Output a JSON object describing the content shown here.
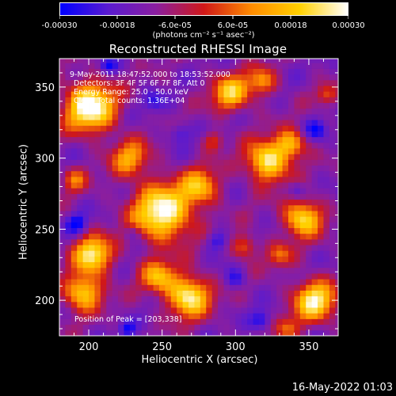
{
  "colorbar": {
    "tick_labels": [
      "-0.00030",
      "-0.00018",
      "-6.0e-05",
      "6.0e-05",
      "0.00018",
      "0.00030"
    ],
    "units": "(photons cm⁻² s⁻¹ asec⁻²)",
    "range": [
      -0.0003,
      0.0003
    ],
    "colormap": [
      "#0000ff",
      "#5a1bd0",
      "#8a1ea0",
      "#d01818",
      "#ff8c00",
      "#ffd000",
      "#ffffff"
    ]
  },
  "chart_data": {
    "type": "heatmap",
    "title": "Reconstructed RHESSI Image",
    "xlabel": "Heliocentric X (arcsec)",
    "ylabel": "Heliocentric Y (arcsec)",
    "xlim": [
      180,
      370
    ],
    "ylim": [
      175,
      370
    ],
    "xticks": [
      200,
      250,
      300,
      350
    ],
    "yticks": [
      200,
      250,
      300,
      350
    ],
    "grid": false,
    "annotations": [
      "9-May-2011 18:47:52.000 to 18:53:52.000",
      "Detectors: 3F 4F 5F 6F 7F 8F, Att 0",
      "Energy Range: 25.0 - 50.0 keV",
      "Clean    Total counts: 1.36E+04"
    ],
    "peak_label": "Position of Peak = [203,338]",
    "peak": [
      203,
      338
    ],
    "bright_sources": [
      {
        "x": 201,
        "y": 336,
        "sigma": 12,
        "amp": 1.0
      },
      {
        "x": 250,
        "y": 262,
        "sigma": 14,
        "amp": 0.95
      },
      {
        "x": 276,
        "y": 280,
        "sigma": 9,
        "amp": 0.6
      },
      {
        "x": 228,
        "y": 300,
        "sigma": 9,
        "amp": 0.55
      },
      {
        "x": 322,
        "y": 298,
        "sigma": 10,
        "amp": 0.85
      },
      {
        "x": 338,
        "y": 310,
        "sigma": 7,
        "amp": 0.6
      },
      {
        "x": 346,
        "y": 258,
        "sigma": 9,
        "amp": 0.8
      },
      {
        "x": 268,
        "y": 203,
        "sigma": 10,
        "amp": 0.9
      },
      {
        "x": 247,
        "y": 217,
        "sigma": 8,
        "amp": 0.6
      },
      {
        "x": 203,
        "y": 232,
        "sigma": 9,
        "amp": 0.85
      },
      {
        "x": 196,
        "y": 206,
        "sigma": 9,
        "amp": 0.75
      },
      {
        "x": 354,
        "y": 200,
        "sigma": 10,
        "amp": 0.85
      },
      {
        "x": 297,
        "y": 346,
        "sigma": 9,
        "amp": 0.7
      },
      {
        "x": 318,
        "y": 354,
        "sigma": 7,
        "amp": 0.5
      },
      {
        "x": 306,
        "y": 238,
        "sigma": 6,
        "amp": 0.45
      },
      {
        "x": 330,
        "y": 232,
        "sigma": 6,
        "amp": 0.4
      },
      {
        "x": 190,
        "y": 285,
        "sigma": 6,
        "amp": 0.4
      },
      {
        "x": 362,
        "y": 345,
        "sigma": 5,
        "amp": 0.35
      },
      {
        "x": 285,
        "y": 312,
        "sigma": 5,
        "amp": 0.35
      },
      {
        "x": 335,
        "y": 180,
        "sigma": 6,
        "amp": 0.35
      }
    ],
    "dark_sources": [
      {
        "x": 192,
        "y": 254,
        "sigma": 5,
        "amp": 0.7
      },
      {
        "x": 288,
        "y": 242,
        "sigma": 5,
        "amp": 0.6
      },
      {
        "x": 262,
        "y": 318,
        "sigma": 5,
        "amp": 0.5
      },
      {
        "x": 213,
        "y": 365,
        "sigma": 4,
        "amp": 0.6
      },
      {
        "x": 355,
        "y": 320,
        "sigma": 5,
        "amp": 0.6
      },
      {
        "x": 300,
        "y": 215,
        "sigma": 5,
        "amp": 0.5
      },
      {
        "x": 226,
        "y": 180,
        "sigma": 4,
        "amp": 0.6
      },
      {
        "x": 318,
        "y": 186,
        "sigma": 5,
        "amp": 0.6
      },
      {
        "x": 342,
        "y": 278,
        "sigma": 4,
        "amp": 0.5
      },
      {
        "x": 244,
        "y": 340,
        "sigma": 5,
        "amp": 0.5
      },
      {
        "x": 230,
        "y": 248,
        "sigma": 4,
        "amp": 0.4
      }
    ]
  },
  "footer": {
    "timestamp": "16-May-2022 01:03"
  }
}
